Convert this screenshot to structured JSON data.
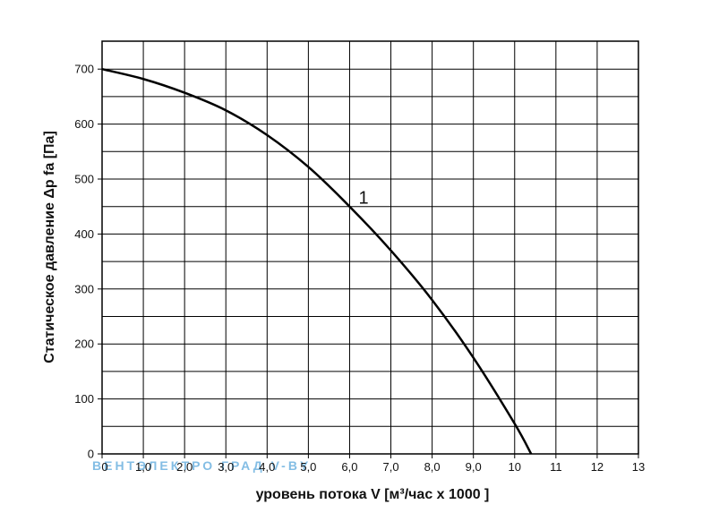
{
  "chart_data": {
    "type": "line",
    "xlabel": "уровень потока  V [м³/час x 1000 ]",
    "ylabel": "Статическое давление  Δp fa [Па]",
    "xlim": [
      0,
      13
    ],
    "ylim": [
      0,
      750
    ],
    "grid": true,
    "x_ticks": [
      "0",
      "1,0",
      "2,0",
      "3,0",
      "4,0",
      "5,0",
      "6,0",
      "7,0",
      "8,0",
      "9,0",
      "10",
      "11",
      "12",
      "13"
    ],
    "y_ticks": [
      "0",
      "100",
      "200",
      "300",
      "400",
      "500",
      "600",
      "700"
    ],
    "series": [
      {
        "name": "1",
        "x": [
          0,
          1,
          2,
          3,
          4,
          5,
          6,
          7,
          8,
          9,
          10,
          10.4
        ],
        "y": [
          700,
          682,
          657,
          625,
          580,
          522,
          450,
          370,
          280,
          175,
          55,
          0
        ]
      }
    ],
    "watermark_text": "ВЕНТЭЛЕКТРО ГРАД  V-BY"
  },
  "colors": {
    "line": "#000000",
    "grid": "#000000",
    "watermark_blue": "#5aa8dc",
    "watermark_gray": "#8a8a8a"
  }
}
